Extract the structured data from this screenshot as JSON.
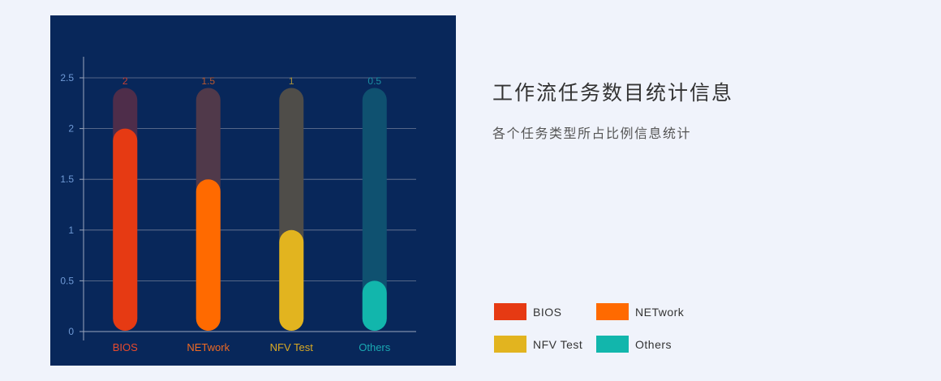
{
  "title": "工作流任务数目统计信息",
  "subtitle": "各个任务类型所占比例信息统计",
  "legend": [
    {
      "label": "BIOS",
      "color": "#e63a13"
    },
    {
      "label": "NETwork",
      "color": "#ff6a00"
    },
    {
      "label": "NFV Test",
      "color": "#e2b41f"
    },
    {
      "label": "Others",
      "color": "#12b6ac"
    }
  ],
  "chart_data": {
    "type": "bar",
    "categories": [
      "BIOS",
      "NETwork",
      "NFV Test",
      "Others"
    ],
    "values": [
      2,
      1.5,
      1,
      0.5
    ],
    "background_values": [
      2.4,
      2.4,
      2.4,
      2.4
    ],
    "colors": [
      "#e63a13",
      "#ff6a00",
      "#e2b41f",
      "#12b6ac"
    ],
    "track_colors": [
      "#4e2d4a",
      "#50394a",
      "#4f4d49",
      "#0f5170"
    ],
    "label_colors": [
      "#e84a2c",
      "#f06a22",
      "#d9a923",
      "#1aa9b3"
    ],
    "data_label_colors": [
      "#c44035",
      "#b9582f",
      "#a9923b",
      "#1b8fa3"
    ],
    "yticks": [
      "0",
      "0.5",
      "1",
      "1.5",
      "2",
      "2.5"
    ],
    "ylim": [
      0,
      2.5
    ],
    "grid": true
  }
}
